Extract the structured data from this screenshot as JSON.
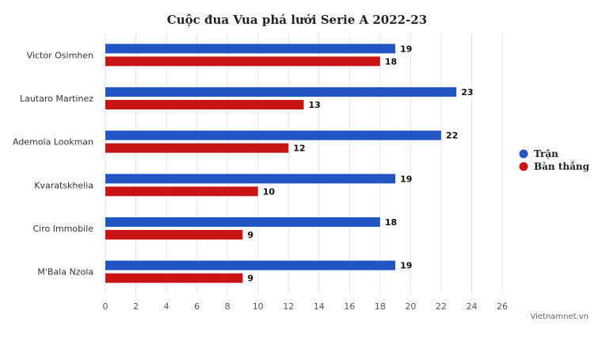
{
  "chart_data": {
    "type": "bar",
    "orientation": "horizontal",
    "title": "Cuộc đua Vua phá lưới Serie A 2022-23",
    "categories": [
      "Victor Osimhen",
      "Lautaro Martinez",
      "Ademola Lookman",
      "Kvaratskhelia",
      "Ciro Immobile",
      "M'Bala Nzola"
    ],
    "series": [
      {
        "name": "Trận",
        "color": "#2356c4",
        "values": [
          19,
          23,
          22,
          19,
          18,
          19
        ]
      },
      {
        "name": "Bàn thắng",
        "color": "#c81414",
        "values": [
          18,
          13,
          12,
          10,
          9,
          9
        ]
      }
    ],
    "xlim": [
      0,
      26
    ],
    "xticks": [
      0,
      2,
      4,
      6,
      8,
      10,
      12,
      14,
      16,
      18,
      20,
      22,
      24,
      26
    ],
    "grid": true,
    "legend_position": "right"
  },
  "credit": "Vietnamnet.vn"
}
